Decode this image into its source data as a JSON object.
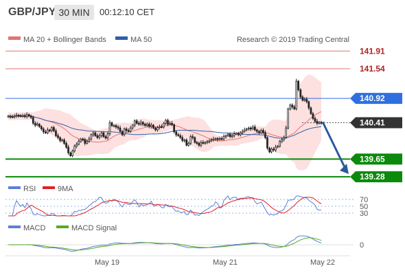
{
  "header": {
    "symbol": "GBP/JPY",
    "timeframe": "30 MIN",
    "clock": "00:12:10 CET"
  },
  "colors": {
    "bollinger_line": "#e57373",
    "bollinger_band": "#fde0e0",
    "ma50": "#2f5fa8",
    "price_line_blue": "#2f6fe0",
    "target_green": "#0b8a0b",
    "current_bg": "#333333",
    "arrow": "#2b5a9a",
    "rsi": "#5b7fd6",
    "rsi_ma": "#e02020",
    "macd": "#5b7fd6",
    "macd_signal": "#55aa22",
    "candle": "#222222"
  },
  "chart_data": [
    {
      "type": "candlestick",
      "legend": [
        "MA 20 + Bollinger Bands",
        "MA 50"
      ],
      "credit": "Research © 2019 Trading Central",
      "ylim": [
        139.21,
        142.0
      ],
      "price_levels": [
        {
          "label": "141.91",
          "value": 141.91,
          "style": "resistance"
        },
        {
          "label": "141.54",
          "value": 141.54,
          "style": "resistance"
        },
        {
          "label": "140.92",
          "value": 140.92,
          "style": "pivot"
        },
        {
          "label": "140.41",
          "value": 140.41,
          "style": "current"
        },
        {
          "label": "139.65",
          "value": 139.65,
          "style": "target"
        },
        {
          "label": "139.28",
          "value": 139.28,
          "style": "target"
        }
      ],
      "close": [
        140.55,
        140.54,
        140.53,
        140.55,
        140.57,
        140.56,
        140.55,
        140.56,
        140.54,
        140.58,
        140.55,
        140.52,
        140.4,
        140.36,
        140.38,
        140.33,
        140.28,
        140.22,
        140.2,
        140.26,
        140.25,
        140.31,
        140.24,
        140.14,
        140.1,
        140.04,
        140.05,
        139.98,
        139.9,
        139.78,
        139.72,
        139.82,
        139.92,
        139.96,
        140.02,
        140.07,
        140.06,
        139.98,
        140.02,
        140.07,
        140.16,
        140.2,
        140.14,
        140.1,
        140.14,
        140.2,
        140.12,
        140.09,
        140.18,
        140.41,
        140.35,
        140.35,
        140.32,
        140.3,
        140.23,
        140.16,
        140.28,
        140.25,
        140.23,
        140.3,
        140.36,
        140.45,
        140.4,
        140.38,
        140.42,
        140.38,
        140.35,
        140.38,
        140.33,
        140.36,
        140.3,
        140.26,
        140.31,
        140.33,
        140.32,
        140.4,
        140.46,
        140.38,
        140.4,
        140.37,
        140.22,
        140.16,
        140.14,
        140.1,
        140.04,
        140.05,
        139.94,
        139.98,
        140.12,
        140.1,
        140.0,
        139.98,
        139.94,
        140.0,
        139.98,
        140.0,
        140.02,
        140.03,
        140.05,
        140.07,
        140.08,
        140.06,
        140.08,
        140.07,
        140.12,
        140.14,
        140.17,
        140.12,
        140.14,
        140.18,
        140.19,
        140.16,
        140.2,
        140.23,
        140.26,
        140.28,
        140.3,
        140.28,
        140.32,
        140.26,
        140.23,
        140.2,
        140.25,
        140.2,
        140.1,
        139.88,
        139.8,
        139.86,
        139.84,
        139.9,
        139.92,
        140.02,
        140.06,
        140.1,
        140.3,
        140.7,
        140.78,
        140.74,
        140.7,
        141.28,
        141.1,
        140.95,
        140.88,
        140.9,
        140.85,
        140.72,
        140.6,
        140.5,
        140.44,
        140.4,
        140.42,
        140.4
      ]
    },
    {
      "type": "line",
      "legend": [
        "RSI",
        "9MA"
      ],
      "yticks": [
        "70",
        "50",
        "30"
      ]
    },
    {
      "type": "line",
      "legend": [
        "MACD",
        "MACD Signal"
      ],
      "yticks": [
        "0"
      ]
    }
  ],
  "x_axis": {
    "ticks": [
      "May 19",
      "May 21",
      "May 22"
    ]
  }
}
